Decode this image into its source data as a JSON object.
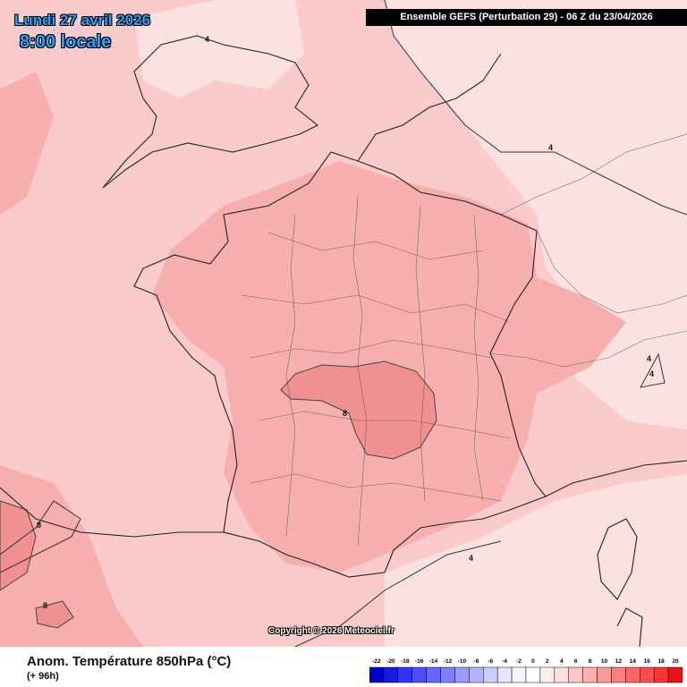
{
  "header": {
    "date": "Lundi 27 avril 2026",
    "time": "8:00 locale",
    "run": "Ensemble GEFS  (Perturbation 29)  -  06 Z du 23/04/2026"
  },
  "copyright": "Copyright © 2026 Meteociel.fr",
  "footer": {
    "parameter": "Anom. Température 850hPa (°C)",
    "lead_time": "(+ 96h)"
  },
  "legend": {
    "labels": [
      "-22",
      "-20",
      "-18",
      "-16",
      "-14",
      "-12",
      "-10",
      "-8",
      "-6",
      "-4",
      "-2",
      "0",
      "2",
      "4",
      "6",
      "8",
      "10",
      "12",
      "14",
      "16",
      "18",
      "20"
    ],
    "colors": [
      "#0000cc",
      "#1a1ae6",
      "#3333ff",
      "#4d4dff",
      "#6666ff",
      "#8080ff",
      "#9999ff",
      "#b3b3ff",
      "#ccccff",
      "#e6e6ff",
      "#f5f5ff",
      "#ffffff",
      "#fff0f0",
      "#ffe0e0",
      "#ffc8c8",
      "#ffb0b0",
      "#ff9898",
      "#ff7f7f",
      "#ff6666",
      "#ff4d4d",
      "#ff3333",
      "#ee1111"
    ]
  },
  "contour_labels": [
    "4",
    "4",
    "4",
    "4",
    "4",
    "8",
    "8",
    "8"
  ],
  "colors": {
    "anom_2_4": "#fce1e1",
    "anom_4_6": "#fbcaca",
    "anom_6_8": "#f6aeae",
    "anom_8_10": "#f09090",
    "title": "#29a3ff"
  }
}
